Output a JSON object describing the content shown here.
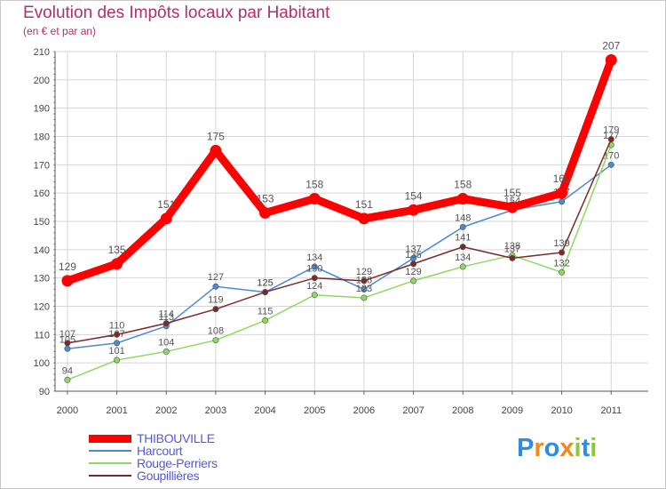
{
  "chart_data": {
    "type": "line",
    "title": "Evolution des Impôts locaux par Habitant",
    "subtitle": "(en € et par an)",
    "xlabel": "",
    "ylabel": "",
    "categories": [
      "2000",
      "2001",
      "2002",
      "2003",
      "2004",
      "2005",
      "2006",
      "2007",
      "2008",
      "2009",
      "2010",
      "2011"
    ],
    "ylim": [
      90,
      210
    ],
    "yticks": [
      90,
      100,
      110,
      120,
      130,
      140,
      150,
      160,
      170,
      180,
      190,
      200,
      210
    ],
    "series": [
      {
        "name": "THIBOUVILLE",
        "color": "#ff0000",
        "values": [
          129,
          135,
          151,
          175,
          153,
          158,
          151,
          154,
          158,
          155,
          160,
          207
        ]
      },
      {
        "name": "Harcourt",
        "color": "#4a8ad0",
        "values": [
          105,
          107,
          113,
          127,
          125,
          134,
          126,
          137,
          148,
          154,
          157,
          170
        ]
      },
      {
        "name": "Rouge-Perriers",
        "color": "#8ed860",
        "values": [
          94,
          101,
          104,
          108,
          115,
          124,
          123,
          129,
          134,
          138,
          132,
          177
        ]
      },
      {
        "name": "Goupillières",
        "color": "#7a2a2a",
        "values": [
          107,
          110,
          114,
          119,
          125,
          130,
          129,
          135,
          141,
          137,
          139,
          179
        ]
      }
    ]
  },
  "logo": {
    "text": "Proxiti",
    "colors": [
      "#2f8be8",
      "#f08a1c",
      "#2f8be8",
      "#f08a1c",
      "#8cc63f",
      "#2f8be8",
      "#8cc63f"
    ]
  }
}
